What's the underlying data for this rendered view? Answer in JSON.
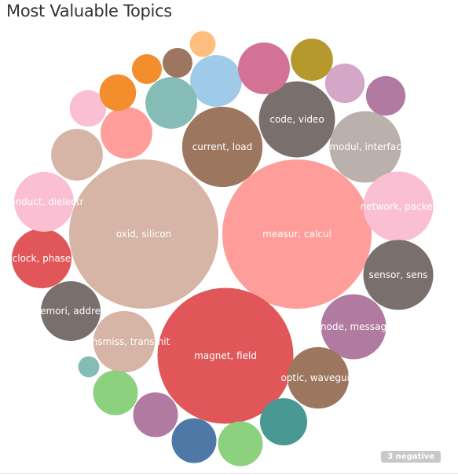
{
  "header": {
    "title": "Most Valuable Topics"
  },
  "footer": {
    "negative_badge": "3 negative"
  },
  "chart_data": {
    "type": "bubble",
    "title": "Most Valuable Topics",
    "bubbles": [
      {
        "label": "oxid, silicon",
        "size": 100,
        "color": "#d7b5a6"
      },
      {
        "label": "measur, calcul",
        "size": 100,
        "color": "#ff9d9a"
      },
      {
        "label": "magnet, field",
        "size": 83,
        "color": "#e15759"
      },
      {
        "label": "current, load",
        "size": 29,
        "color": "#9d7660"
      },
      {
        "label": "code, video",
        "size": 26,
        "color": "#79706e"
      },
      {
        "label": "modul, interfac",
        "size": 23,
        "color": "#bab0ac"
      },
      {
        "label": "network, packet",
        "size": 22,
        "color": "#fabfd2"
      },
      {
        "label": "sensor, sens",
        "size": 22,
        "color": "#79706e"
      },
      {
        "label": "node, messag",
        "size": 19,
        "color": "#b07aa1"
      },
      {
        "label": "optic, waveguid",
        "size": 17,
        "color": "#9d7660"
      },
      {
        "label": "transmiss, transmit",
        "size": 17,
        "color": "#d7b5a6"
      },
      {
        "label": "memori, address",
        "size": 16,
        "color": "#79706e"
      },
      {
        "label": "clock, phase",
        "size": 16,
        "color": "#e15759"
      },
      {
        "label": "conduct, dielectr",
        "size": 16,
        "color": "#fabfd2"
      },
      {
        "label": "",
        "size": 12,
        "color": "#a0cbe8"
      },
      {
        "label": "",
        "size": 12,
        "color": "#d37295"
      },
      {
        "label": "",
        "size": 12,
        "color": "#86bcb6"
      },
      {
        "label": "",
        "size": 12,
        "color": "#ff9d9a"
      },
      {
        "label": "",
        "size": 12,
        "color": "#d7b5a6"
      },
      {
        "label": "",
        "size": 8,
        "color": "#b6992d"
      },
      {
        "label": "",
        "size": 7,
        "color": "#d4a6c8"
      },
      {
        "label": "",
        "size": 7,
        "color": "#b07aa1"
      },
      {
        "label": "",
        "size": 6,
        "color": "#fabfd2"
      },
      {
        "label": "",
        "size": 6,
        "color": "#f28e2b"
      },
      {
        "label": "",
        "size": 4,
        "color": "#f28e2b"
      },
      {
        "label": "",
        "size": 4,
        "color": "#9d7660"
      },
      {
        "label": "",
        "size": 3,
        "color": "#ffbe7d"
      },
      {
        "label": "",
        "size": 10,
        "color": "#499894"
      },
      {
        "label": "",
        "size": 9,
        "color": "#8cd17d"
      },
      {
        "label": "",
        "size": 9,
        "color": "#4e79a7"
      },
      {
        "label": "",
        "size": 9,
        "color": "#8cd17d"
      },
      {
        "label": "",
        "size": 9,
        "color": "#b07aa1"
      },
      {
        "label": "",
        "size": 2,
        "color": "#86bcb6"
      }
    ]
  }
}
